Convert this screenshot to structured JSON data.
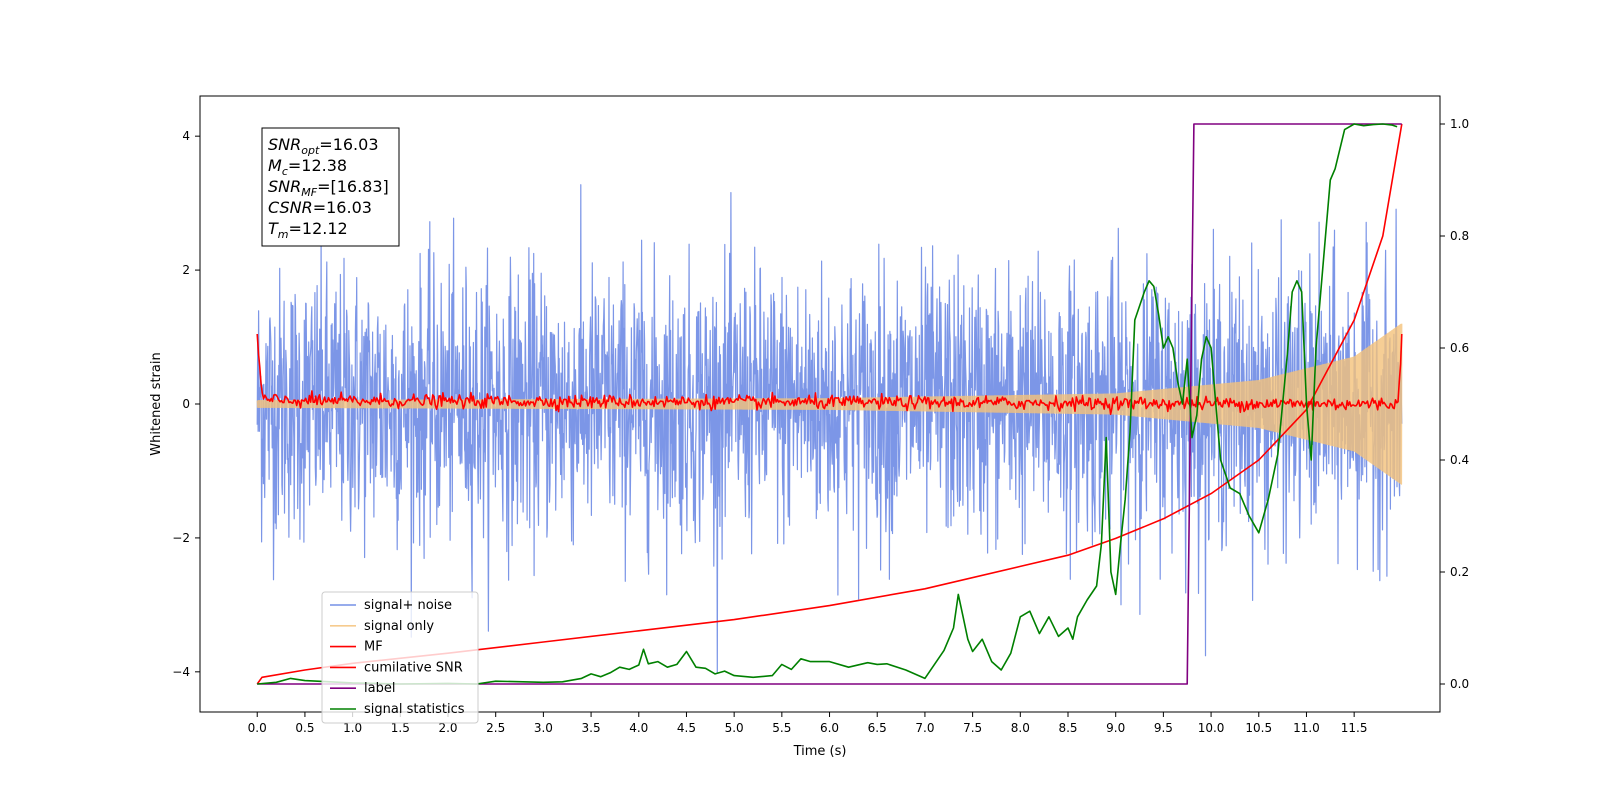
{
  "chart_data": {
    "type": "line",
    "xlabel": "Time (s)",
    "ylabel": "Whitened strain",
    "xlim": [
      -0.6,
      12.4
    ],
    "ylim": [
      -4.6,
      4.6
    ],
    "y2lim": [
      -0.05,
      1.05
    ],
    "x_ticks": [
      0.0,
      0.5,
      1.0,
      1.5,
      2.0,
      2.5,
      3.0,
      3.5,
      4.0,
      4.5,
      5.0,
      5.5,
      6.0,
      6.5,
      7.0,
      7.5,
      8.0,
      8.5,
      9.0,
      9.5,
      10.0,
      10.5,
      11.0,
      11.5
    ],
    "x_tick_labels": [
      "0.0",
      "0.5",
      "1.0",
      "1.5",
      "2.0",
      "2.5",
      "3.0",
      "3.5",
      "4.0",
      "4.5",
      "5.0",
      "5.5",
      "6.0",
      "6.5",
      "7.0",
      "7.5",
      "8.0",
      "8.5",
      "9.0",
      "9.5",
      "10.0",
      "10.5",
      "11.0",
      "11.5"
    ],
    "y_ticks": [
      -4,
      -2,
      0,
      2,
      4
    ],
    "y_tick_labels": [
      "−4",
      "−2",
      "0",
      "2",
      "4"
    ],
    "y2_ticks": [
      0.0,
      0.2,
      0.4,
      0.6,
      0.8,
      1.0
    ],
    "y2_tick_labels": [
      "0.0",
      "0.2",
      "0.4",
      "0.6",
      "0.8",
      "1.0"
    ],
    "grid": false,
    "legend_position": "lower-left",
    "annotation": [
      {
        "base": "SNR",
        "sub": "opt",
        "value": "=16.03"
      },
      {
        "base": "M",
        "sub": "c",
        "value": "=12.38"
      },
      {
        "base": "SNR",
        "sub": "MF",
        "value": "=[16.83]"
      },
      {
        "base": "CSNR",
        "sub": "",
        "value": "=16.03"
      },
      {
        "base": "T",
        "sub": "m",
        "value": "=12.12"
      }
    ],
    "series": [
      {
        "name": "signal+ noise",
        "color": "#7590e6",
        "axis": "left",
        "style": "noise",
        "x_range": [
          0.0,
          12.0
        ],
        "amplitude_sigma": 1.0
      },
      {
        "name": "signal only",
        "color": "#f4c27a",
        "axis": "left",
        "style": "chirp",
        "x_range": [
          0.0,
          12.0
        ],
        "envelope": {
          "x": [
            0.0,
            6.0,
            9.0,
            10.5,
            11.5,
            12.0
          ],
          "y": [
            0.05,
            0.08,
            0.15,
            0.35,
            0.7,
            1.2
          ]
        }
      },
      {
        "name": "MF",
        "color": "#ff0000",
        "axis": "left",
        "style": "mf",
        "x": [
          0.0,
          0.02,
          0.05,
          0.1,
          11.95,
          11.98,
          12.0
        ],
        "y": [
          1.0,
          0.6,
          0.15,
          0.05,
          0.0,
          0.4,
          1.0
        ],
        "noise_sigma": 0.05
      },
      {
        "name": "cumilative SNR",
        "color": "#ff0000",
        "axis": "right",
        "x": [
          0.0,
          0.05,
          0.5,
          1.0,
          2.0,
          3.0,
          4.0,
          5.0,
          6.0,
          7.0,
          8.0,
          8.5,
          9.0,
          9.5,
          10.0,
          10.5,
          11.0,
          11.5,
          11.8,
          12.0
        ],
        "y": [
          0.0,
          0.012,
          0.025,
          0.037,
          0.055,
          0.075,
          0.095,
          0.115,
          0.14,
          0.17,
          0.21,
          0.23,
          0.26,
          0.295,
          0.34,
          0.4,
          0.49,
          0.65,
          0.8,
          1.0
        ]
      },
      {
        "name": "label",
        "color": "#800080",
        "axis": "right",
        "x": [
          0.0,
          9.75,
          9.82,
          12.0
        ],
        "y": [
          0.0,
          0.0,
          1.0,
          1.0
        ]
      },
      {
        "name": "signal statistics",
        "color": "#008000",
        "axis": "right",
        "x": [
          0.0,
          0.2,
          0.35,
          0.5,
          1.0,
          1.5,
          2.0,
          2.3,
          2.5,
          3.0,
          3.2,
          3.4,
          3.5,
          3.6,
          3.7,
          3.8,
          3.9,
          4.0,
          4.05,
          4.1,
          4.2,
          4.3,
          4.4,
          4.5,
          4.6,
          4.7,
          4.8,
          4.9,
          5.0,
          5.2,
          5.4,
          5.5,
          5.6,
          5.7,
          5.8,
          6.0,
          6.2,
          6.4,
          6.5,
          6.6,
          6.8,
          7.0,
          7.2,
          7.3,
          7.35,
          7.4,
          7.45,
          7.5,
          7.6,
          7.7,
          7.8,
          7.9,
          8.0,
          8.1,
          8.2,
          8.3,
          8.4,
          8.5,
          8.55,
          8.6,
          8.7,
          8.8,
          8.85,
          8.9,
          8.95,
          9.0,
          9.05,
          9.1,
          9.15,
          9.2,
          9.3,
          9.35,
          9.4,
          9.45,
          9.5,
          9.55,
          9.6,
          9.65,
          9.7,
          9.75,
          9.8,
          9.85,
          9.9,
          9.95,
          10.0,
          10.05,
          10.1,
          10.2,
          10.3,
          10.4,
          10.5,
          10.6,
          10.7,
          10.8,
          10.85,
          10.9,
          10.95,
          11.0,
          11.05,
          11.1,
          11.2,
          11.25,
          11.3,
          11.4,
          11.5,
          11.6,
          11.7,
          11.8,
          11.9,
          11.95
        ],
        "y": [
          0.0,
          0.003,
          0.01,
          0.006,
          0.002,
          0.0,
          0.001,
          0.0,
          0.005,
          0.003,
          0.004,
          0.01,
          0.018,
          0.013,
          0.02,
          0.03,
          0.026,
          0.034,
          0.062,
          0.036,
          0.04,
          0.03,
          0.035,
          0.058,
          0.03,
          0.028,
          0.018,
          0.023,
          0.015,
          0.012,
          0.015,
          0.035,
          0.026,
          0.045,
          0.04,
          0.04,
          0.03,
          0.038,
          0.035,
          0.036,
          0.025,
          0.01,
          0.06,
          0.1,
          0.16,
          0.12,
          0.08,
          0.058,
          0.08,
          0.04,
          0.025,
          0.055,
          0.12,
          0.13,
          0.09,
          0.12,
          0.085,
          0.1,
          0.08,
          0.12,
          0.15,
          0.175,
          0.25,
          0.44,
          0.2,
          0.16,
          0.25,
          0.33,
          0.45,
          0.65,
          0.7,
          0.72,
          0.71,
          0.66,
          0.6,
          0.62,
          0.6,
          0.54,
          0.5,
          0.58,
          0.44,
          0.48,
          0.58,
          0.62,
          0.6,
          0.5,
          0.4,
          0.35,
          0.34,
          0.3,
          0.27,
          0.33,
          0.41,
          0.59,
          0.7,
          0.72,
          0.7,
          0.5,
          0.4,
          0.6,
          0.8,
          0.9,
          0.92,
          0.99,
          1.0,
          0.997,
          0.999,
          1.0,
          0.998,
          0.995
        ]
      }
    ]
  }
}
